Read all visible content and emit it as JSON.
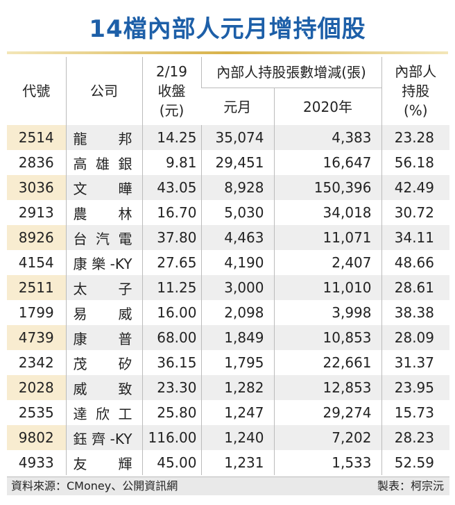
{
  "title": "14檔內部人元月增持個股",
  "table": {
    "header": {
      "code": "代號",
      "company": "公司",
      "close": [
        "2/19",
        "收盤",
        "(元)"
      ],
      "change_group": "內部人持股張數增減(張)",
      "jan": "元月",
      "y2020": "2020年",
      "holding": [
        "內部人",
        "持股",
        "(%)"
      ]
    },
    "rows": [
      [
        "2514",
        "龍邦",
        "14.25",
        "35,074",
        "4,383",
        "23.28"
      ],
      [
        "2836",
        "高雄銀",
        "9.81",
        "29,451",
        "16,647",
        "56.18"
      ],
      [
        "3036",
        "文曄",
        "43.05",
        "8,928",
        "150,396",
        "42.49"
      ],
      [
        "2913",
        "農林",
        "16.70",
        "5,030",
        "34,018",
        "30.72"
      ],
      [
        "8926",
        "台汽電",
        "37.80",
        "4,463",
        "11,071",
        "34.11"
      ],
      [
        "4154",
        "康樂-KY",
        "27.65",
        "4,190",
        "2,407",
        "48.66"
      ],
      [
        "2511",
        "太子",
        "11.25",
        "3,000",
        "11,010",
        "28.61"
      ],
      [
        "1799",
        "易威",
        "16.00",
        "2,098",
        "3,998",
        "38.38"
      ],
      [
        "4739",
        "康普",
        "68.00",
        "1,849",
        "10,853",
        "28.09"
      ],
      [
        "2342",
        "茂矽",
        "36.15",
        "1,795",
        "22,661",
        "31.37"
      ],
      [
        "2028",
        "威致",
        "23.30",
        "1,282",
        "12,853",
        "23.95"
      ],
      [
        "2535",
        "達欣工",
        "25.80",
        "1,247",
        "29,274",
        "15.73"
      ],
      [
        "9802",
        "鈺齊-KY",
        "116.00",
        "1,240",
        "7,202",
        "28.23"
      ],
      [
        "4933",
        "友輝",
        "45.00",
        "1,231",
        "1,533",
        "52.59"
      ]
    ]
  },
  "footer": {
    "source": "資料來源：CMoney、公開資訊網",
    "author": "製表：柯宗沅"
  }
}
